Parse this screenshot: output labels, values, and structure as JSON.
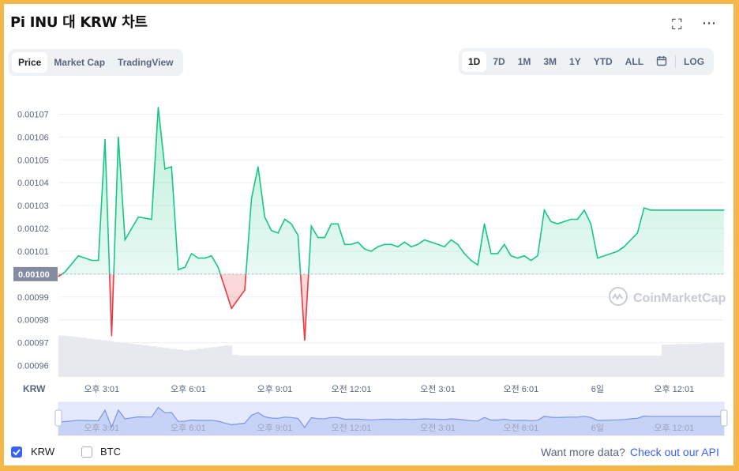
{
  "header": {
    "title": "Pi INU 대 KRW 차트",
    "expand_icon": "⛶",
    "more_icon": "⋯"
  },
  "tabs": [
    "Price",
    "Market Cap",
    "TradingView"
  ],
  "ranges": [
    "1D",
    "7D",
    "1M",
    "3M",
    "1Y",
    "YTD",
    "ALL"
  ],
  "log_label": "LOG",
  "watermark": "CoinMarketCap",
  "colors": {
    "up": "#16c784",
    "down": "#ea3943",
    "accent": "#3861fb",
    "frame": "#f5b748"
  },
  "footer": {
    "krw_label": "KRW",
    "btc_label": "BTC",
    "more_data": "Want more data?",
    "api_link": "Check out our API"
  },
  "chart_data": {
    "type": "line",
    "y_unit_label": "KRW",
    "ylim": [
      0.000955,
      0.001075
    ],
    "baseline": 0.001,
    "yticks": [
      "0.00096",
      "0.00097",
      "0.00098",
      "0.00099",
      "0.00100",
      "0.00101",
      "0.00102",
      "0.00103",
      "0.00104",
      "0.00105",
      "0.00106",
      "0.00107"
    ],
    "current_price_label": "0.00100",
    "x_tick_labels": [
      "오후 3:01",
      "오후 6:01",
      "오후 9:01",
      "오전 12:01",
      "오전 3:01",
      "오전 6:01",
      "6일",
      "오후 12:01"
    ],
    "grid": true,
    "series": [
      {
        "x": [
          0,
          0.01,
          0.03,
          0.05,
          0.06,
          0.07,
          0.08,
          0.09,
          0.1,
          0.12,
          0.14,
          0.15,
          0.16,
          0.17,
          0.18,
          0.19,
          0.2,
          0.21,
          0.22,
          0.23,
          0.24,
          0.25,
          0.26,
          0.28,
          0.29,
          0.3,
          0.31,
          0.32,
          0.33,
          0.34,
          0.35,
          0.36,
          0.37,
          0.38,
          0.39,
          0.4,
          0.41,
          0.42,
          0.43,
          0.44,
          0.45,
          0.46,
          0.47,
          0.48,
          0.49,
          0.5,
          0.51,
          0.52,
          0.53,
          0.54,
          0.55,
          0.56,
          0.57,
          0.58,
          0.59,
          0.6,
          0.61,
          0.62,
          0.63,
          0.64,
          0.65,
          0.66,
          0.67,
          0.68,
          0.69,
          0.7,
          0.71,
          0.72,
          0.73,
          0.74,
          0.75,
          0.76,
          0.77,
          0.78,
          0.79,
          0.8,
          0.81,
          0.82,
          0.83,
          0.84,
          0.85,
          0.86,
          0.87,
          0.88,
          0.89,
          0.9,
          0.91,
          0.92,
          0.93,
          0.94,
          0.95,
          0.96,
          0.97,
          0.98,
          0.99,
          1.0
        ],
        "values": [
          0.000999,
          0.001001,
          0.001008,
          0.001006,
          0.001006,
          0.001059,
          0.000973,
          0.00106,
          0.001015,
          0.001025,
          0.001024,
          0.001073,
          0.001046,
          0.001047,
          0.001002,
          0.001003,
          0.001009,
          0.001007,
          0.001007,
          0.001008,
          0.001003,
          0.000994,
          0.000985,
          0.000993,
          0.001033,
          0.001047,
          0.001025,
          0.001019,
          0.001018,
          0.001024,
          0.001022,
          0.001017,
          0.000971,
          0.001021,
          0.001016,
          0.001016,
          0.001022,
          0.001022,
          0.001013,
          0.001013,
          0.001014,
          0.001011,
          0.00101,
          0.001012,
          0.001013,
          0.001013,
          0.001012,
          0.001014,
          0.001012,
          0.001013,
          0.001015,
          0.001014,
          0.001013,
          0.001012,
          0.001015,
          0.001013,
          0.001009,
          0.001006,
          0.001004,
          0.001022,
          0.001009,
          0.001009,
          0.001013,
          0.001008,
          0.001007,
          0.001008,
          0.001006,
          0.001008,
          0.001028,
          0.001023,
          0.001022,
          0.001023,
          0.001024,
          0.001024,
          0.001028,
          0.001022,
          0.001007,
          0.001008,
          0.001009,
          0.00101,
          0.001012,
          0.001015,
          0.001018,
          0.001029,
          0.001028,
          0.001028,
          0.001028,
          0.001028,
          0.001028,
          0.001028,
          0.001028,
          0.001028,
          0.001028,
          0.001028,
          0.001028,
          0.001028
        ],
        "volume": [
          0.97,
          0.96,
          0.94,
          0.92,
          0.9,
          0.88,
          0.86,
          0.84,
          0.82,
          0.8,
          0.78,
          0.76,
          0.74,
          0.72,
          0.7,
          0.68,
          0.66,
          0.64,
          0.62,
          0.64,
          0.66,
          0.68,
          0.7,
          0.72,
          0.74,
          0.52,
          0.5,
          0.5,
          0.5,
          0.5,
          0.5,
          0.5,
          0.5,
          0.5,
          0.5,
          0.5,
          0.5,
          0.5,
          0.5,
          0.5,
          0.5,
          0.5,
          0.5,
          0.5,
          0.5,
          0.5,
          0.5,
          0.5,
          0.5,
          0.5,
          0.5,
          0.5,
          0.5,
          0.5,
          0.5,
          0.5,
          0.5,
          0.5,
          0.5,
          0.5,
          0.5,
          0.5,
          0.5,
          0.5,
          0.5,
          0.5,
          0.5,
          0.5,
          0.5,
          0.5,
          0.5,
          0.5,
          0.5,
          0.5,
          0.5,
          0.5,
          0.5,
          0.5,
          0.5,
          0.5,
          0.5,
          0.5,
          0.5,
          0.5,
          0.5,
          0.5,
          0.5,
          0.76,
          0.76,
          0.77,
          0.77,
          0.78,
          0.78,
          0.79,
          0.79,
          0.8
        ]
      }
    ]
  }
}
